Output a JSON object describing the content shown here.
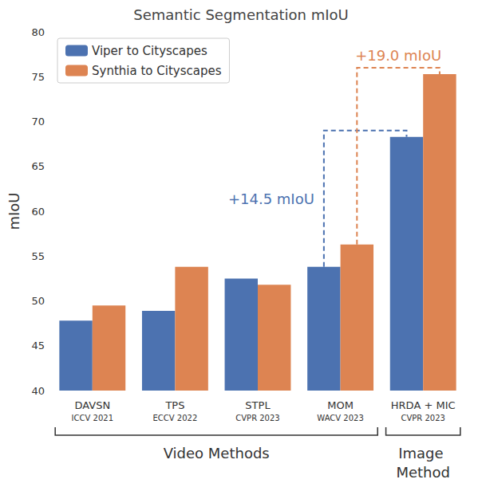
{
  "chart_data": {
    "type": "bar",
    "title": "Semantic Segmentation mIoU",
    "y_label": "mIoU",
    "categories": [
      "DAVSN",
      "TPS",
      "STPL",
      "MOM",
      "HRDA + MIC"
    ],
    "venues": [
      "ICCV 2021",
      "ECCV 2022",
      "CVPR 2023",
      "WACV 2023",
      "CVPR 2023"
    ],
    "series": [
      {
        "name": "Viper to Cityscapes",
        "color": "#4c72b0",
        "values": [
          47.8,
          48.9,
          52.5,
          53.8,
          68.3
        ]
      },
      {
        "name": "Synthia to Cityscapes",
        "color": "#dd8452",
        "values": [
          49.5,
          53.8,
          51.8,
          56.3,
          75.3
        ]
      }
    ],
    "ylim": [
      40,
      80
    ],
    "yticks": [
      40,
      45,
      50,
      55,
      60,
      65,
      70,
      75,
      80
    ],
    "grid": false,
    "legend": "upper left",
    "annotations": [
      {
        "text": "+14.5 mIoU",
        "series": "Viper to Cityscapes",
        "from": "MOM",
        "to": "HRDA + MIC"
      },
      {
        "text": "+19.0 mIoU",
        "series": "Synthia to Cityscapes",
        "from": "MOM",
        "to": "HRDA + MIC"
      }
    ],
    "groups": [
      {
        "label": "Video Methods",
        "categories": [
          "DAVSN",
          "TPS",
          "STPL",
          "MOM"
        ]
      },
      {
        "label": "Image Method",
        "categories": [
          "HRDA + MIC"
        ]
      }
    ]
  }
}
